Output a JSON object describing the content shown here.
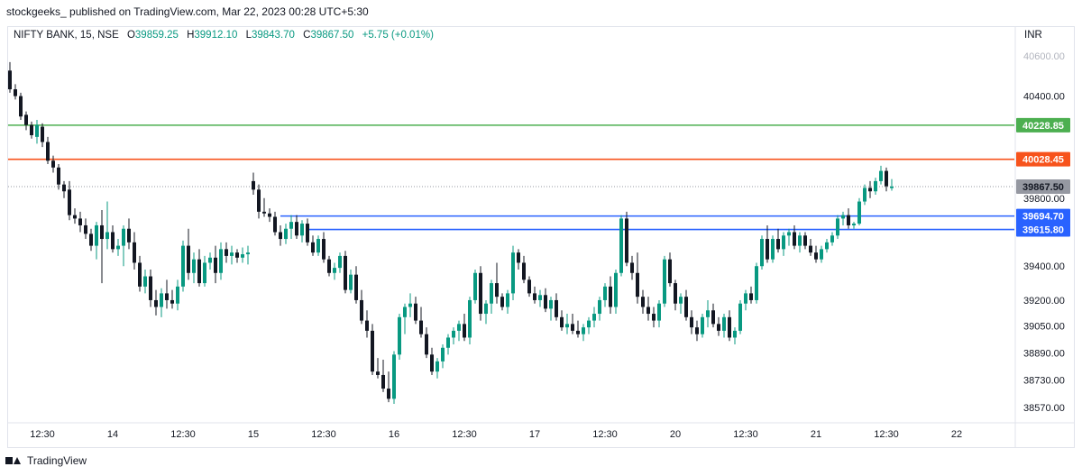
{
  "header": {
    "publisher_line": "stockgeeks_ published on TradingView.com, Mar 22, 2023 00:28 UTC+5:30"
  },
  "legend": {
    "symbol": "NIFTY BANK, 15, NSE",
    "open_label": "O",
    "open_value": "39859.25",
    "high_label": "H",
    "high_value": "39912.10",
    "low_label": "L",
    "low_value": "39843.70",
    "close_label": "C",
    "close_value": "39867.50",
    "change": "+5.75 (+0.01%)"
  },
  "currency": "INR",
  "footer": {
    "brand": "TradingView"
  },
  "colors": {
    "up": "#089981",
    "down": "#131722",
    "green_level": "#4caf50",
    "orange_level": "#f7531c",
    "blue_level": "#2962ff",
    "last_price": "#9598a1"
  },
  "chart_data": {
    "type": "candlestick",
    "ylim": [
      38500,
      40700
    ],
    "y_ticks": [
      {
        "value": 40400,
        "label": "40400.00"
      },
      {
        "value": 39800,
        "label": "39800.00"
      },
      {
        "value": 39400,
        "label": "39400.00"
      },
      {
        "value": 39200,
        "label": "39200.00"
      },
      {
        "value": 39050,
        "label": "39050.00"
      },
      {
        "value": 38890,
        "label": "38890.00"
      },
      {
        "value": 38730,
        "label": "38730.00"
      },
      {
        "value": 38570,
        "label": "38570.00"
      }
    ],
    "top_tick_label": "40600.00",
    "x_ticks": [
      {
        "bar": 6,
        "label": "12:30"
      },
      {
        "bar": 19,
        "label": "14"
      },
      {
        "bar": 32,
        "label": "12:30"
      },
      {
        "bar": 45,
        "label": "15"
      },
      {
        "bar": 58,
        "label": "12:30"
      },
      {
        "bar": 71,
        "label": "16"
      },
      {
        "bar": 84,
        "label": "12:30"
      },
      {
        "bar": 97,
        "label": "17"
      },
      {
        "bar": 110,
        "label": "12:30"
      },
      {
        "bar": 123,
        "label": "20"
      },
      {
        "bar": 136,
        "label": "12:30"
      },
      {
        "bar": 149,
        "label": "21"
      },
      {
        "bar": 162,
        "label": "12:30"
      },
      {
        "bar": 175,
        "label": "22"
      }
    ],
    "levels": [
      {
        "value": 40228.85,
        "label": "40228.85",
        "color": "#4caf50",
        "from_bar": 0
      },
      {
        "value": 40028.45,
        "label": "40028.45",
        "color": "#f7531c",
        "from_bar": 0
      },
      {
        "value": 39694.7,
        "label": "39694.70",
        "color": "#2962ff",
        "from_bar": 50
      },
      {
        "value": 39615.8,
        "label": "39615.80",
        "color": "#2962ff",
        "from_bar": 55
      }
    ],
    "last_price": {
      "value": 39867.5,
      "label": "39867.50"
    },
    "candles": [
      [
        40550,
        40600,
        40420,
        40440
      ],
      [
        40440,
        40470,
        40380,
        40400
      ],
      [
        40400,
        40420,
        40260,
        40280
      ],
      [
        40290,
        40310,
        40200,
        40230
      ],
      [
        40230,
        40250,
        40150,
        40170
      ],
      [
        40160,
        40260,
        40120,
        40230
      ],
      [
        40220,
        40240,
        40100,
        40130
      ],
      [
        40130,
        40160,
        40000,
        40020
      ],
      [
        40020,
        40050,
        39950,
        39980
      ],
      [
        39980,
        40000,
        39850,
        39880
      ],
      [
        39880,
        39900,
        39800,
        39840
      ],
      [
        39850,
        39900,
        39670,
        39700
      ],
      [
        39700,
        39740,
        39650,
        39680
      ],
      [
        39680,
        39720,
        39600,
        39640
      ],
      [
        39640,
        39680,
        39560,
        39590
      ],
      [
        39590,
        39620,
        39490,
        39520
      ],
      [
        39520,
        39660,
        39440,
        39640
      ],
      [
        39640,
        39730,
        39300,
        39560
      ],
      [
        39560,
        39780,
        39500,
        39600
      ],
      [
        39600,
        39640,
        39480,
        39500
      ],
      [
        39500,
        39560,
        39460,
        39520
      ],
      [
        39520,
        39640,
        39400,
        39620
      ],
      [
        39620,
        39680,
        39500,
        39540
      ],
      [
        39540,
        39600,
        39380,
        39420
      ],
      [
        39420,
        39460,
        39250,
        39280
      ],
      [
        39280,
        39380,
        39240,
        39340
      ],
      [
        39340,
        39380,
        39160,
        39200
      ],
      [
        39200,
        39260,
        39110,
        39160
      ],
      [
        39160,
        39270,
        39100,
        39240
      ],
      [
        39240,
        39320,
        39150,
        39200
      ],
      [
        39200,
        39260,
        39150,
        39180
      ],
      [
        39180,
        39320,
        39140,
        39280
      ],
      [
        39280,
        39550,
        39250,
        39520
      ],
      [
        39520,
        39620,
        39320,
        39360
      ],
      [
        39360,
        39480,
        39300,
        39440
      ],
      [
        39440,
        39500,
        39280,
        39300
      ],
      [
        39300,
        39460,
        39280,
        39420
      ],
      [
        39420,
        39480,
        39380,
        39450
      ],
      [
        39450,
        39520,
        39300,
        39360
      ],
      [
        39360,
        39540,
        39320,
        39500
      ],
      [
        39500,
        39540,
        39420,
        39460
      ],
      [
        39460,
        39520,
        39410,
        39480
      ],
      [
        39480,
        39500,
        39420,
        39450
      ],
      [
        39450,
        39510,
        39420,
        39470
      ],
      [
        39470,
        39520,
        39410,
        39480
      ],
      [
        39900,
        39950,
        39820,
        39850
      ],
      [
        39850,
        39880,
        39680,
        39720
      ],
      [
        39720,
        39800,
        39690,
        39710
      ],
      [
        39710,
        39740,
        39660,
        39690
      ],
      [
        39690,
        39720,
        39580,
        39600
      ],
      [
        39600,
        39640,
        39520,
        39560
      ],
      [
        39560,
        39650,
        39530,
        39620
      ],
      [
        39620,
        39700,
        39560,
        39660
      ],
      [
        39660,
        39700,
        39560,
        39580
      ],
      [
        39580,
        39670,
        39540,
        39650
      ],
      [
        39650,
        39680,
        39520,
        39540
      ],
      [
        39540,
        39580,
        39460,
        39480
      ],
      [
        39480,
        39580,
        39460,
        39560
      ],
      [
        39560,
        39600,
        39420,
        39440
      ],
      [
        39440,
        39460,
        39340,
        39360
      ],
      [
        39360,
        39420,
        39320,
        39390
      ],
      [
        39390,
        39480,
        39360,
        39460
      ],
      [
        39460,
        39490,
        39240,
        39260
      ],
      [
        39260,
        39380,
        39240,
        39350
      ],
      [
        39350,
        39400,
        39180,
        39200
      ],
      [
        39200,
        39260,
        39060,
        39080
      ],
      [
        39080,
        39140,
        38980,
        39020
      ],
      [
        39020,
        39060,
        38760,
        38780
      ],
      [
        38780,
        38860,
        38740,
        38760
      ],
      [
        38760,
        38850,
        38660,
        38680
      ],
      [
        38680,
        38780,
        38600,
        38620
      ],
      [
        38620,
        38900,
        38590,
        38880
      ],
      [
        38880,
        39120,
        38850,
        39100
      ],
      [
        39100,
        39180,
        39000,
        39160
      ],
      [
        39160,
        39240,
        39100,
        39180
      ],
      [
        39180,
        39220,
        39060,
        39080
      ],
      [
        39080,
        39160,
        38980,
        39000
      ],
      [
        39000,
        39040,
        38860,
        38880
      ],
      [
        38880,
        38920,
        38760,
        38780
      ],
      [
        38780,
        38860,
        38740,
        38840
      ],
      [
        38840,
        38940,
        38800,
        38920
      ],
      [
        38920,
        39000,
        38880,
        38980
      ],
      [
        38980,
        39040,
        38940,
        39020
      ],
      [
        39020,
        39080,
        38960,
        39060
      ],
      [
        39060,
        39120,
        38960,
        38980
      ],
      [
        38980,
        39220,
        38940,
        39200
      ],
      [
        39200,
        39380,
        39180,
        39360
      ],
      [
        39360,
        39400,
        39080,
        39120
      ],
      [
        39120,
        39200,
        39060,
        39180
      ],
      [
        39180,
        39320,
        39120,
        39300
      ],
      [
        39300,
        39420,
        39180,
        39220
      ],
      [
        39220,
        39240,
        39140,
        39160
      ],
      [
        39160,
        39260,
        39120,
        39240
      ],
      [
        39240,
        39520,
        39200,
        39480
      ],
      [
        39480,
        39500,
        39380,
        39420
      ],
      [
        39420,
        39460,
        39300,
        39320
      ],
      [
        39320,
        39340,
        39220,
        39240
      ],
      [
        39240,
        39280,
        39180,
        39200
      ],
      [
        39200,
        39260,
        39160,
        39230
      ],
      [
        39230,
        39270,
        39130,
        39150
      ],
      [
        39150,
        39220,
        39080,
        39200
      ],
      [
        39200,
        39240,
        39080,
        39100
      ],
      [
        39100,
        39140,
        39020,
        39040
      ],
      [
        39040,
        39120,
        39000,
        39060
      ],
      [
        39060,
        39120,
        39000,
        39020
      ],
      [
        39020,
        39080,
        38980,
        39000
      ],
      [
        39000,
        39060,
        38960,
        39040
      ],
      [
        39040,
        39100,
        39000,
        39080
      ],
      [
        39080,
        39160,
        39040,
        39120
      ],
      [
        39120,
        39220,
        39080,
        39200
      ],
      [
        39200,
        39300,
        39160,
        39280
      ],
      [
        39280,
        39340,
        39120,
        39160
      ],
      [
        39160,
        39380,
        39120,
        39360
      ],
      [
        39360,
        39700,
        39340,
        39680
      ],
      [
        39680,
        39720,
        39400,
        39420
      ],
      [
        39420,
        39460,
        39320,
        39360
      ],
      [
        39360,
        39480,
        39180,
        39220
      ],
      [
        39220,
        39260,
        39120,
        39160
      ],
      [
        39160,
        39220,
        39080,
        39120
      ],
      [
        39120,
        39160,
        39040,
        39080
      ],
      [
        39080,
        39200,
        39040,
        39180
      ],
      [
        39180,
        39460,
        39160,
        39440
      ],
      [
        39440,
        39480,
        39280,
        39300
      ],
      [
        39300,
        39320,
        39140,
        39180
      ],
      [
        39180,
        39240,
        39120,
        39220
      ],
      [
        39220,
        39260,
        39080,
        39100
      ],
      [
        39100,
        39140,
        39000,
        39040
      ],
      [
        39040,
        39080,
        38960,
        39000
      ],
      [
        39000,
        39120,
        38980,
        39100
      ],
      [
        39100,
        39200,
        39040,
        39140
      ],
      [
        39140,
        39180,
        39040,
        39060
      ],
      [
        39060,
        39100,
        38990,
        39020
      ],
      [
        39020,
        39120,
        38980,
        39100
      ],
      [
        39100,
        39140,
        38960,
        38980
      ],
      [
        38980,
        39040,
        38940,
        39020
      ],
      [
        39020,
        39200,
        39000,
        39180
      ],
      [
        39180,
        39260,
        39140,
        39240
      ],
      [
        39240,
        39280,
        39180,
        39200
      ],
      [
        39200,
        39420,
        39180,
        39400
      ],
      [
        39400,
        39580,
        39380,
        39560
      ],
      [
        39560,
        39640,
        39420,
        39440
      ],
      [
        39440,
        39580,
        39420,
        39560
      ],
      [
        39560,
        39620,
        39480,
        39500
      ],
      [
        39500,
        39600,
        39460,
        39580
      ],
      [
        39580,
        39620,
        39520,
        39600
      ],
      [
        39600,
        39640,
        39500,
        39520
      ],
      [
        39520,
        39600,
        39480,
        39580
      ],
      [
        39580,
        39600,
        39500,
        39520
      ],
      [
        39520,
        39560,
        39460,
        39480
      ],
      [
        39480,
        39520,
        39420,
        39440
      ],
      [
        39440,
        39520,
        39420,
        39500
      ],
      [
        39500,
        39560,
        39480,
        39540
      ],
      [
        39540,
        39600,
        39520,
        39580
      ],
      [
        39580,
        39700,
        39560,
        39680
      ],
      [
        39680,
        39720,
        39640,
        39700
      ],
      [
        39700,
        39740,
        39620,
        39640
      ],
      [
        39640,
        39660,
        39620,
        39650
      ],
      [
        39650,
        39800,
        39640,
        39780
      ],
      [
        39780,
        39880,
        39760,
        39860
      ],
      [
        39860,
        39900,
        39800,
        39840
      ],
      [
        39840,
        39920,
        39820,
        39900
      ],
      [
        39900,
        39990,
        39880,
        39960
      ],
      [
        39960,
        39980,
        39840,
        39870
      ],
      [
        39859,
        39912,
        39844,
        39868
      ]
    ]
  }
}
